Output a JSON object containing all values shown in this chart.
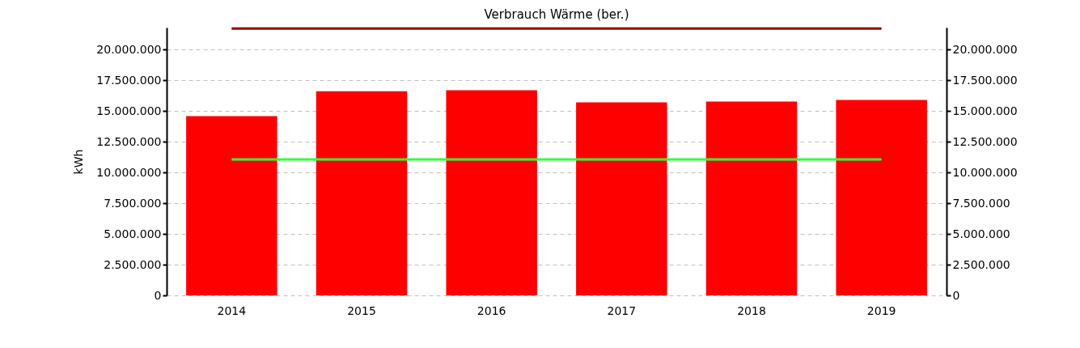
{
  "chart_data": {
    "type": "bar",
    "title": "Verbrauch Wärme (ber.)",
    "ylabel": "kWh",
    "categories": [
      "2014",
      "2015",
      "2016",
      "2017",
      "2018",
      "2019"
    ],
    "series": [
      {
        "color": "#ff0000",
        "values": [
          14570000,
          16600000,
          16680000,
          15690000,
          15760000,
          15890000
        ]
      },
      {
        "type": "line",
        "color": "#33ff33",
        "values": [
          11050000,
          11050000,
          11050000,
          11050000,
          11050000,
          11050000
        ]
      },
      {
        "type": "line",
        "color": "#990000",
        "axis": "y2",
        "values": [
          21700000,
          21700000,
          21700000,
          21700000,
          21700000,
          21700000
        ]
      }
    ],
    "ylim": [
      0,
      21780000
    ],
    "yticks": [
      {
        "value": 0,
        "label": "0"
      },
      {
        "value": 2500000,
        "label": "2.500.000"
      },
      {
        "value": 5000000,
        "label": "5.000.000"
      },
      {
        "value": 7500000,
        "label": "7.500.000"
      },
      {
        "value": 10000000,
        "label": "10.000.000"
      },
      {
        "value": 12500000,
        "label": "12.500.000"
      },
      {
        "value": 15000000,
        "label": "15.000.000"
      },
      {
        "value": 17500000,
        "label": "17.500.000"
      },
      {
        "value": 20000000,
        "label": "20.000.000"
      }
    ],
    "y2lim": [
      0,
      21780000
    ],
    "y2ticks": [
      {
        "value": 0,
        "label": "0"
      },
      {
        "value": 2500000,
        "label": "2.500.000"
      },
      {
        "value": 5000000,
        "label": "5.000.000"
      },
      {
        "value": 7500000,
        "label": "7.500.000"
      },
      {
        "value": 10000000,
        "label": "10.000.000"
      },
      {
        "value": 12500000,
        "label": "12.500.000"
      },
      {
        "value": 15000000,
        "label": "15.000.000"
      },
      {
        "value": 17500000,
        "label": "17.500.000"
      },
      {
        "value": 20000000,
        "label": "20.000.000"
      }
    ],
    "grid": "y"
  }
}
